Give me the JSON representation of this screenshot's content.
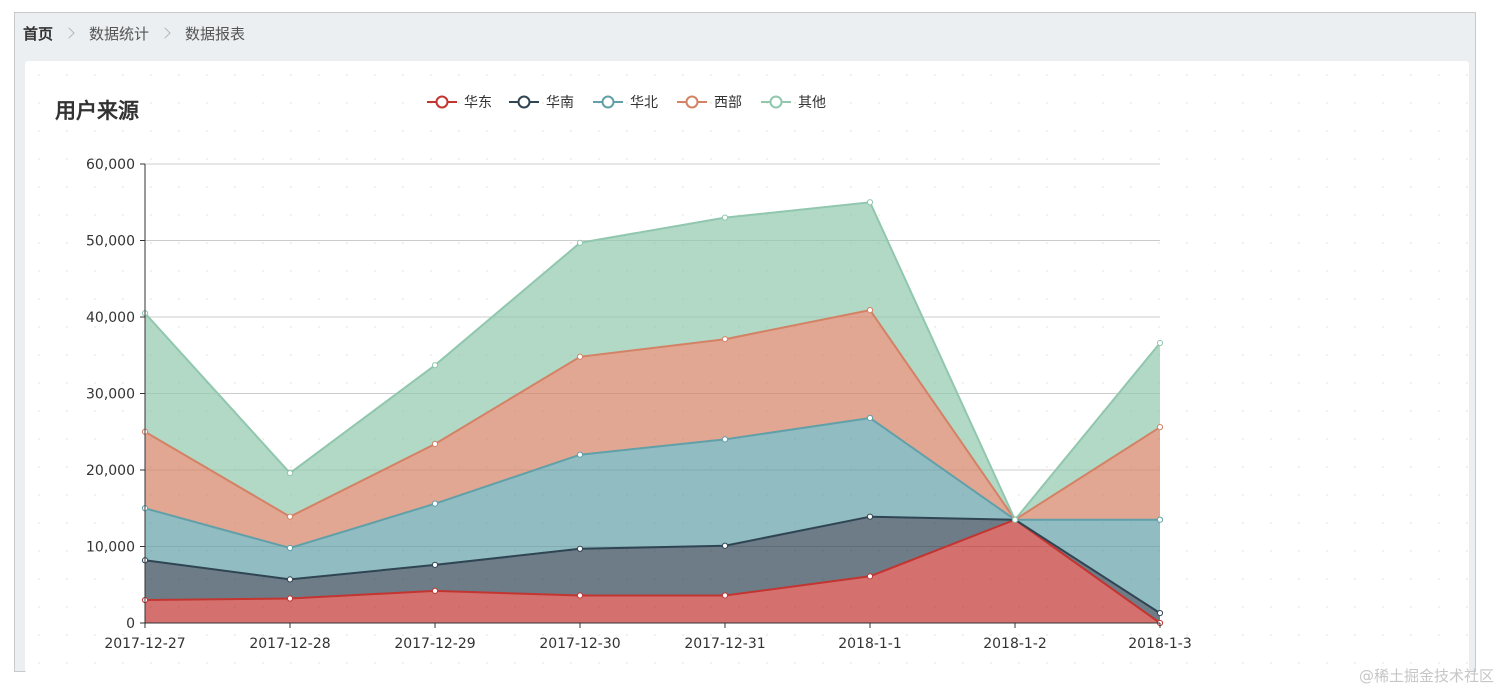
{
  "breadcrumb": {
    "home": "首页",
    "level1": "数据统计",
    "level2": "数据报表"
  },
  "watermark": "@稀土掘金技术社区",
  "chart_data": {
    "type": "area",
    "stacked": true,
    "title": "用户来源",
    "categories": [
      "2017-12-27",
      "2017-12-28",
      "2017-12-29",
      "2017-12-30",
      "2017-12-31",
      "2018-1-1",
      "2018-1-2",
      "2018-1-3"
    ],
    "ylim": [
      0,
      60000
    ],
    "yticks": [
      0,
      10000,
      20000,
      30000,
      40000,
      50000,
      60000
    ],
    "ytick_labels": [
      "0",
      "10,000",
      "20,000",
      "30,000",
      "40,000",
      "50,000",
      "60,000"
    ],
    "grid": true,
    "legend_position": "top-center",
    "series": [
      {
        "name": "华东",
        "color": "#c23531",
        "values": [
          3000,
          3200,
          4200,
          3600,
          3600,
          6100,
          13500,
          0
        ]
      },
      {
        "name": "华南",
        "color": "#2f4554",
        "values": [
          5200,
          2500,
          3400,
          6100,
          6500,
          7800,
          0,
          1300
        ]
      },
      {
        "name": "华北",
        "color": "#61a0a8",
        "values": [
          6800,
          4100,
          8000,
          12300,
          13900,
          12900,
          0,
          12200
        ]
      },
      {
        "name": "西部",
        "color": "#d48265",
        "values": [
          10000,
          4100,
          7800,
          12800,
          13100,
          14100,
          0,
          12100
        ]
      },
      {
        "name": "其他",
        "color": "#91c7ae",
        "values": [
          15500,
          5700,
          10300,
          14900,
          15900,
          14100,
          0,
          11000
        ]
      }
    ]
  }
}
